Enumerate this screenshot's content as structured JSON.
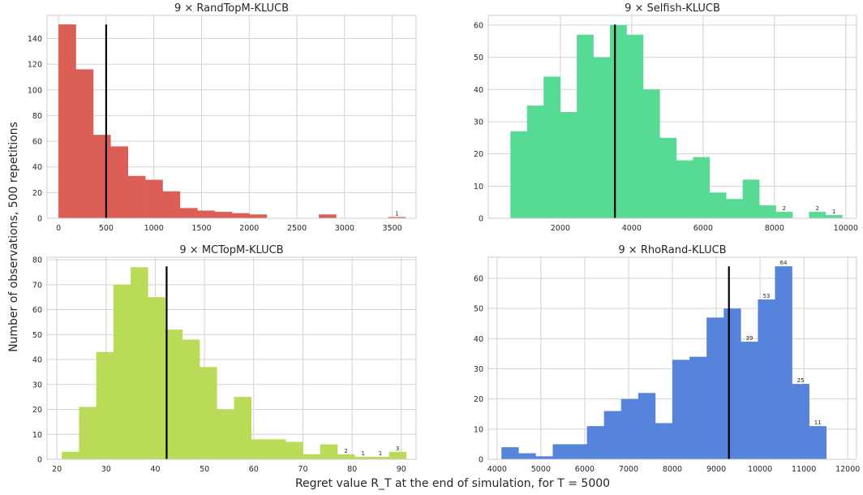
{
  "xlabel": "Regret value R_T at the end of simulation, for T = 5000",
  "ylabel": "Number of observations, 500 repetitions",
  "chart_data": [
    {
      "type": "bar",
      "title": "9 × RandTopM-KLUCB",
      "color": "#db5f57",
      "xlim": [
        -120,
        3750
      ],
      "ylim": [
        0,
        158
      ],
      "xticks": [
        0,
        500,
        1000,
        1500,
        2000,
        2500,
        3000,
        3500
      ],
      "yticks": [
        0,
        20,
        40,
        60,
        80,
        100,
        120,
        140
      ],
      "bin_edges": [
        0,
        182,
        364,
        546,
        728,
        910,
        1092,
        1274,
        1456,
        1638,
        1820,
        2002,
        2184,
        2366,
        2548,
        2730,
        2912,
        3094,
        3276,
        3458,
        3640
      ],
      "counts": [
        151,
        116,
        65,
        56,
        33,
        30,
        21,
        8,
        6,
        5,
        4,
        3,
        0,
        0,
        0,
        3,
        0,
        0,
        0,
        1
      ],
      "mean_line": 500,
      "annotations": [
        {
          "bin": 19,
          "text": "1"
        }
      ]
    },
    {
      "type": "bar",
      "title": "9 × Selfish-KLUCB",
      "color": "#57db94",
      "xlim": [
        -20,
        10300
      ],
      "ylim": [
        0,
        63
      ],
      "xticks": [
        2000,
        4000,
        6000,
        8000,
        10000
      ],
      "yticks": [
        0,
        10,
        20,
        30,
        40,
        50,
        60
      ],
      "bin_edges": [
        600,
        1065,
        1530,
        1995,
        2460,
        2925,
        3390,
        3855,
        4320,
        4785,
        5250,
        5715,
        6180,
        6645,
        7110,
        7575,
        8040,
        8505,
        8970,
        9435,
        9900
      ],
      "counts": [
        27,
        35,
        44,
        33,
        57,
        50,
        60,
        57,
        40,
        25,
        18,
        19,
        8,
        6,
        12,
        4,
        2,
        0,
        2,
        1
      ],
      "mean_line": 3530,
      "annotations": [
        {
          "bin": 16,
          "text": "2"
        },
        {
          "bin": 18,
          "text": "2"
        },
        {
          "bin": 19,
          "text": "1"
        }
      ]
    },
    {
      "type": "bar",
      "title": "9 × MCTopM-KLUCB",
      "color": "#b9db57",
      "xlim": [
        18,
        93
      ],
      "ylim": [
        0,
        81
      ],
      "xticks": [
        20,
        30,
        40,
        50,
        60,
        70,
        80,
        90
      ],
      "yticks": [
        0,
        10,
        20,
        30,
        40,
        50,
        60,
        70,
        80
      ],
      "bin_edges": [
        21,
        24.5,
        28,
        31.5,
        35,
        38.5,
        42,
        45.5,
        49,
        52.5,
        56,
        59.5,
        63,
        66.5,
        70,
        73.5,
        77,
        80.5,
        84,
        87.5,
        91
      ],
      "counts": [
        3,
        21,
        43,
        70,
        77,
        65,
        52,
        48,
        37,
        20,
        25,
        8,
        8,
        7,
        2,
        6,
        2,
        1,
        1,
        3
      ],
      "mean_line": 42.3,
      "annotations": [
        {
          "bin": 16,
          "text": "2"
        },
        {
          "bin": 17,
          "text": "1"
        },
        {
          "bin": 18,
          "text": "1"
        },
        {
          "bin": 19,
          "text": "3"
        }
      ]
    },
    {
      "type": "bar",
      "title": "9 × RhoRand-KLUCB",
      "color": "#5784db",
      "xlim": [
        3800,
        12200
      ],
      "ylim": [
        0,
        67
      ],
      "xticks": [
        4000,
        5000,
        6000,
        7000,
        8000,
        9000,
        10000,
        11000,
        12000
      ],
      "yticks": [
        0,
        10,
        20,
        30,
        40,
        50,
        60
      ],
      "bin_edges": [
        4100,
        4490,
        4880,
        5270,
        5660,
        6050,
        6440,
        6830,
        7220,
        7610,
        8000,
        8390,
        8780,
        9170,
        9560,
        9950,
        10340,
        10730,
        11120,
        11510,
        11900
      ],
      "counts": [
        4,
        2,
        1,
        5,
        5,
        11,
        16,
        20,
        22,
        12,
        33,
        34,
        47,
        50,
        39,
        53,
        64,
        25,
        11,
        0
      ],
      "mean_line": 9290,
      "annotations": [
        {
          "bin": 14,
          "text": "39"
        },
        {
          "bin": 15,
          "text": "53"
        },
        {
          "bin": 16,
          "text": "64"
        },
        {
          "bin": 17,
          "text": "25"
        },
        {
          "bin": 18,
          "text": "11"
        }
      ]
    }
  ]
}
